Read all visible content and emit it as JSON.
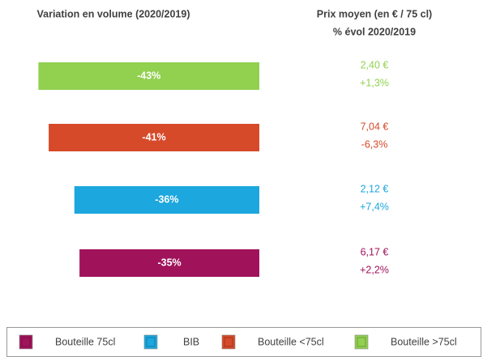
{
  "chart_data": {
    "type": "bar",
    "title": "Variation en volume (2020/2019)",
    "price_title": [
      "Prix moyen (en € / 75 cl)",
      "% évol 2020/2019"
    ],
    "categories": [
      "Bouteille >75cl",
      "Bouteille <75cl",
      "BIB",
      "Bouteille 75cl"
    ],
    "colors": [
      "#92d050",
      "#d64a2a",
      "#1ca7de",
      "#a0135b"
    ],
    "values": [
      -43,
      -41,
      -36,
      -35
    ],
    "value_labels": [
      "-43%",
      "-41%",
      "-36%",
      "-35%"
    ],
    "xlim": [
      -50,
      0
    ],
    "prices": [
      2.4,
      7.04,
      2.12,
      6.17
    ],
    "price_labels": [
      "2,40 €",
      "7,04 €",
      "2,12 €",
      "6,17 €"
    ],
    "evolutions": [
      1.3,
      -6.3,
      7.4,
      2.2
    ],
    "evolution_labels": [
      "+1,3%",
      "-6,3%",
      "+7,4%",
      "+2,2%"
    ],
    "legend_order": [
      3,
      2,
      1,
      0
    ]
  }
}
